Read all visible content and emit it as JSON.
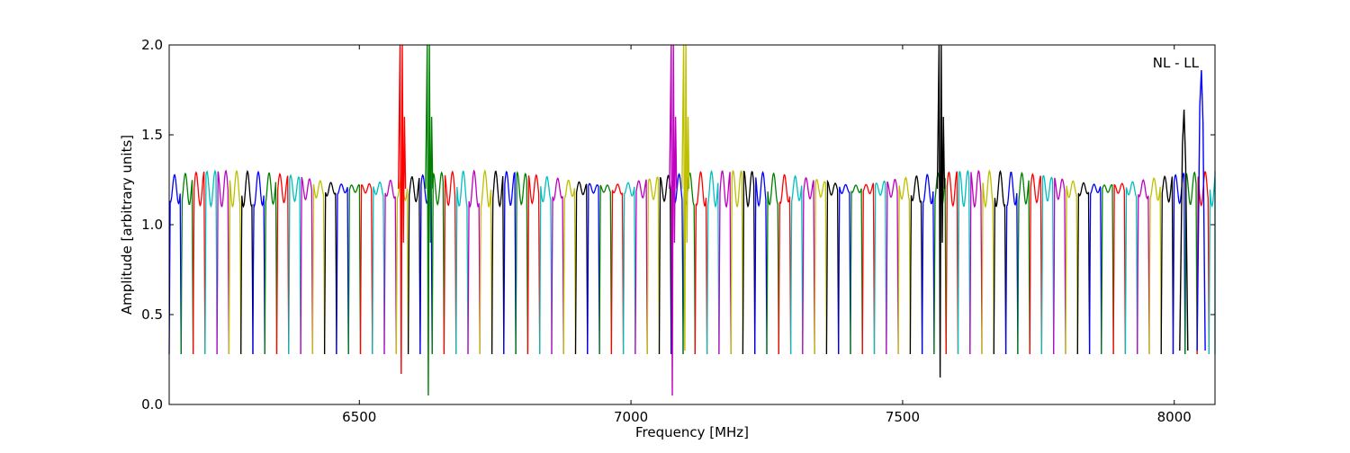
{
  "chart_data": {
    "type": "line",
    "title": "",
    "xlabel": "Frequency [MHz]",
    "ylabel": "Amplitude [arbitrary units]",
    "xlim": [
      6150,
      8075
    ],
    "ylim": [
      0.0,
      2.0
    ],
    "grid": false,
    "x_ticks": [
      6500,
      7000,
      7500,
      8000
    ],
    "x_tick_labels": [
      "6500",
      "7000",
      "7500",
      "8000"
    ],
    "y_ticks": [
      0.0,
      0.5,
      1.0,
      1.5,
      2.0
    ],
    "y_tick_labels": [
      "0.0",
      "0.5",
      "1.0",
      "1.5",
      "2.0"
    ],
    "annotation": "NL - LL",
    "channel_width_mhz": 22,
    "channel_peak_level": 1.2,
    "channel_floor_level": 0.28,
    "series_colors": [
      "#0000ff",
      "#008000",
      "#ff0000",
      "#00bfbf",
      "#bf00bf",
      "#bfbf00",
      "#000000"
    ],
    "flagged_color": "#bfbfbf",
    "spikes": [
      {
        "x": 6578,
        "min": 0.17,
        "max": 2.0,
        "color": "#ff0000"
      },
      {
        "x": 6628,
        "min": 0.05,
        "max": 2.0,
        "color": "#008000"
      },
      {
        "x": 7077,
        "min": 0.05,
        "max": 2.0,
        "color": "#bf00bf"
      },
      {
        "x": 7100,
        "min": 0.3,
        "max": 2.0,
        "color": "#bfbf00"
      },
      {
        "x": 7570,
        "min": 0.15,
        "max": 2.0,
        "color": "#000000"
      }
    ],
    "edge_peaks": [
      {
        "x": 8018,
        "value": 1.64,
        "color": "#000000"
      },
      {
        "x": 8050,
        "value": 1.86,
        "color": "#0000ff"
      }
    ]
  }
}
